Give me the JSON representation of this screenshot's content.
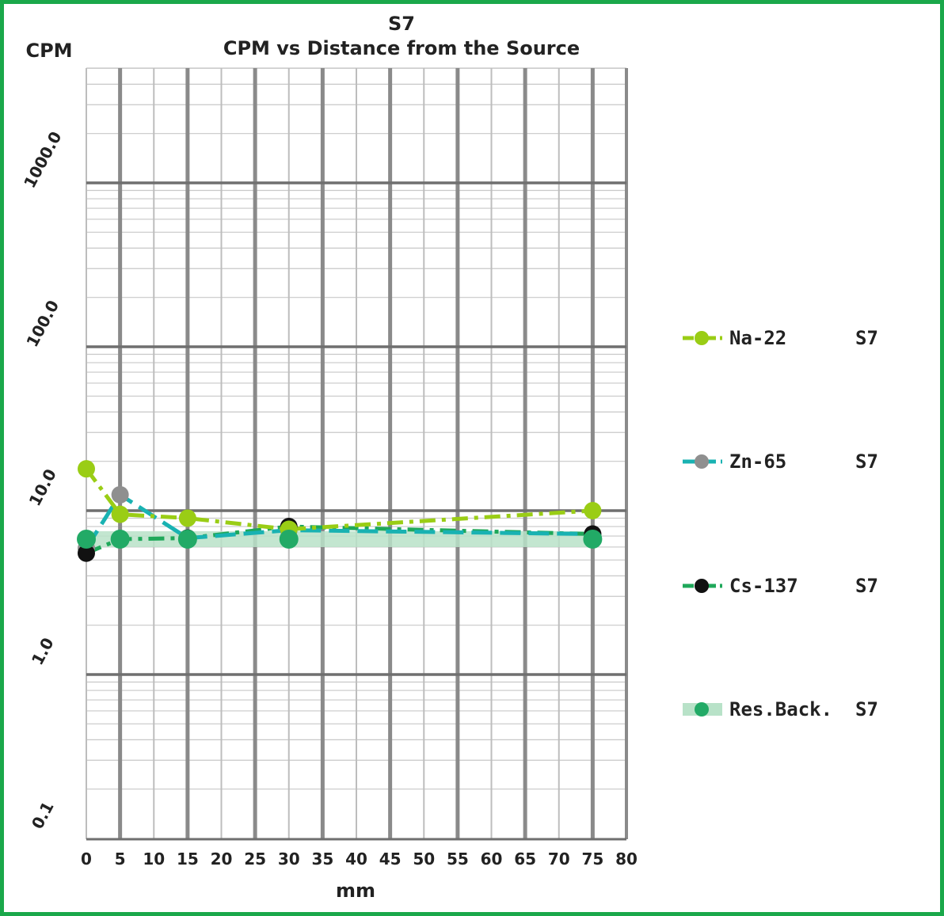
{
  "chart_data": {
    "type": "line",
    "title": "S7",
    "subtitle": "CPM vs Distance from the Source",
    "xlabel": "mm",
    "ylabel": "CPM",
    "xlim": [
      0,
      80
    ],
    "ylim": [
      0.1,
      3000
    ],
    "y_scale": "log",
    "grid": true,
    "legend_position": "right",
    "x_ticks": [
      "0",
      "5",
      "10",
      "15",
      "20",
      "25",
      "30",
      "35",
      "40",
      "45",
      "50",
      "55",
      "60",
      "65",
      "70",
      "75",
      "80"
    ],
    "x_tick_values": [
      0,
      5,
      10,
      15,
      20,
      25,
      30,
      35,
      40,
      45,
      50,
      55,
      60,
      65,
      70,
      75,
      80
    ],
    "y_ticks": [
      "0.1",
      "1.0",
      "10.0",
      "100.0",
      "1000.0"
    ],
    "y_tick_values": [
      0.1,
      1,
      10,
      100,
      1000
    ],
    "series": [
      {
        "name": "Na-22",
        "suffix": "S7",
        "line_color": "#9acd15",
        "marker_color": "#9acd15",
        "dash": "dash-dot",
        "points": [
          [
            0,
            18
          ],
          [
            5,
            9.5
          ],
          [
            15,
            9.0
          ],
          [
            30,
            7.7
          ],
          [
            75,
            10.0
          ]
        ]
      },
      {
        "name": "Zn-65",
        "suffix": "S7",
        "line_color": "#19b2b2",
        "marker_color": "#8f8f8f",
        "dash": "dash",
        "points": [
          [
            0,
            5.9
          ],
          [
            5,
            12.5
          ],
          [
            15,
            6.8
          ],
          [
            30,
            7.6
          ],
          [
            75,
            7.2
          ]
        ]
      },
      {
        "name": "Cs-137",
        "suffix": "S7",
        "line_color": "#1fa85a",
        "marker_color": "#111111",
        "dash": "dash-dot",
        "points": [
          [
            0,
            5.5
          ],
          [
            5,
            6.7
          ],
          [
            15,
            6.8
          ],
          [
            30,
            8.0
          ],
          [
            75,
            7.2
          ]
        ]
      },
      {
        "name": "Res.Back.",
        "suffix": "S7",
        "line_color": "#b8e2c8",
        "marker_color": "#22aa66",
        "dash": "solid",
        "points": [
          [
            0,
            6.7
          ],
          [
            5,
            6.7
          ],
          [
            15,
            6.7
          ],
          [
            30,
            6.7
          ],
          [
            75,
            6.7
          ]
        ]
      }
    ]
  }
}
